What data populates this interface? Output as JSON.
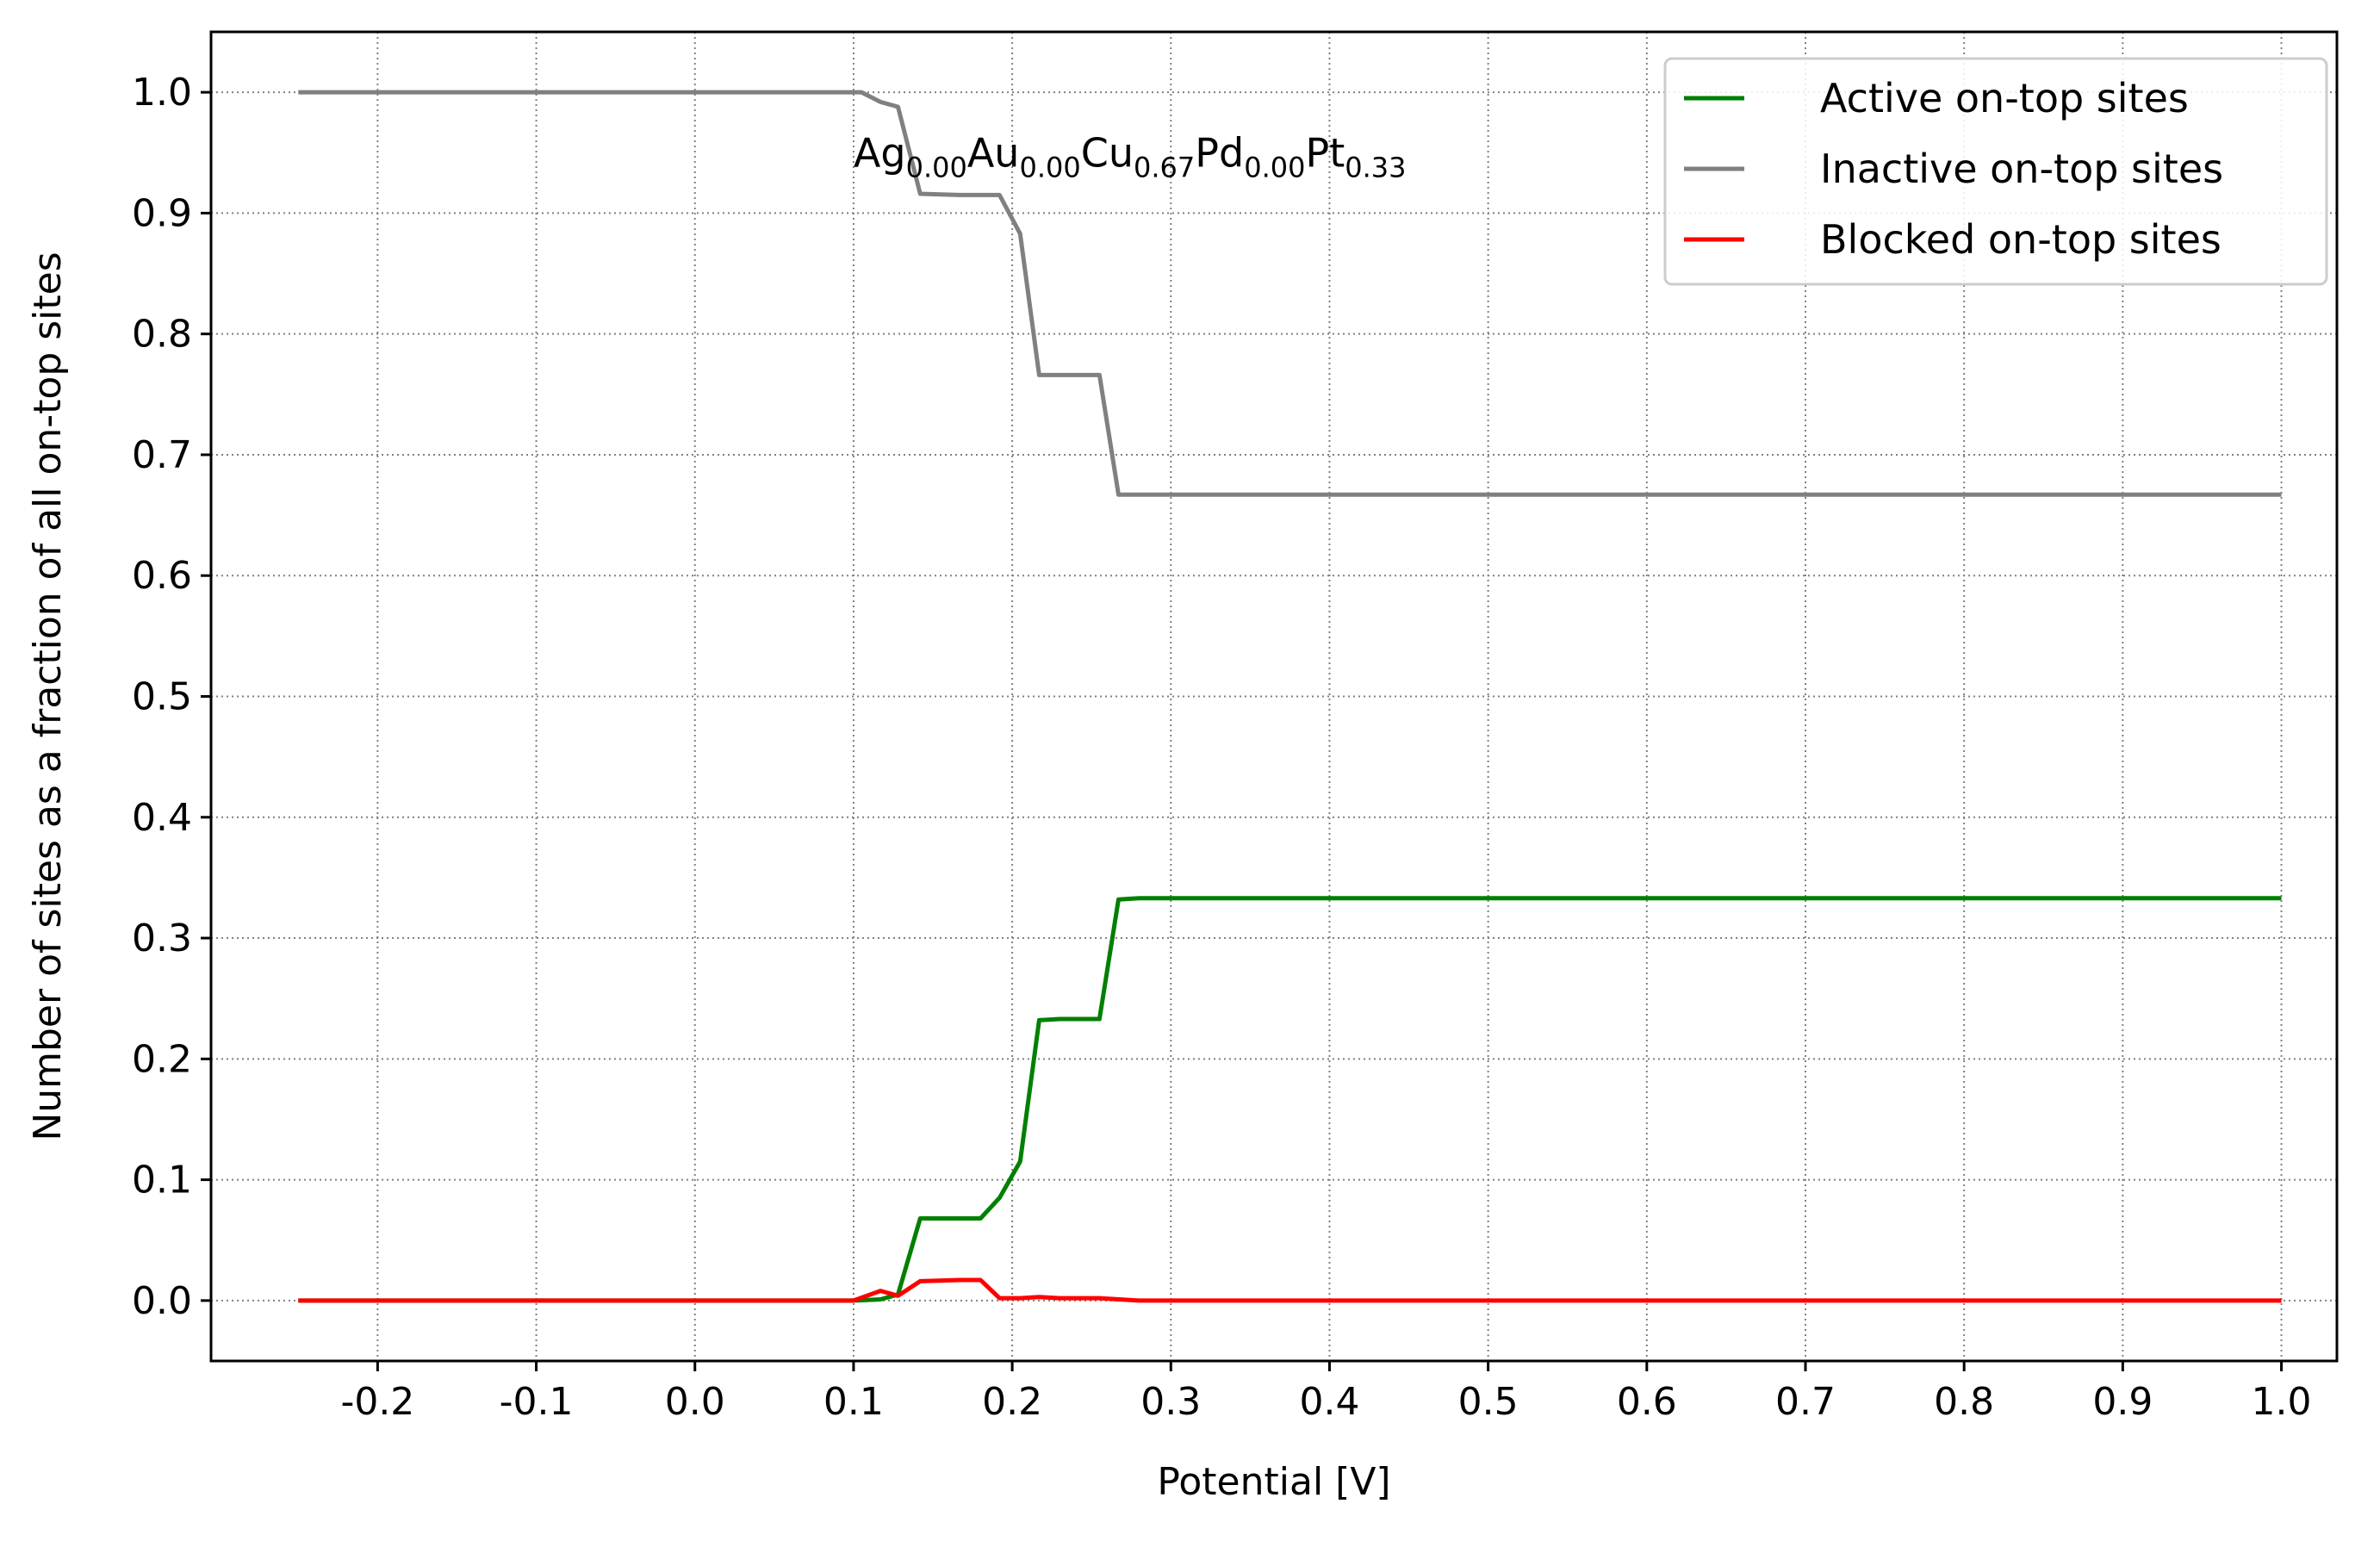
{
  "chart_data": {
    "type": "line",
    "title": "",
    "xlabel": "Potential [V]",
    "ylabel": "Number of sites as a fraction of all on-top sites",
    "xlim": [
      -0.305,
      1.035
    ],
    "ylim": [
      -0.05,
      1.05
    ],
    "xticks": [
      -0.2,
      -0.1,
      0.0,
      0.1,
      0.2,
      0.3,
      0.4,
      0.5,
      0.6,
      0.7,
      0.8,
      0.9,
      1.0
    ],
    "xtick_labels": [
      "-0.2",
      "-0.1",
      "0.0",
      "0.1",
      "0.2",
      "0.3",
      "0.4",
      "0.5",
      "0.6",
      "0.7",
      "0.8",
      "0.9",
      "1.0"
    ],
    "yticks": [
      0.0,
      0.1,
      0.2,
      0.3,
      0.4,
      0.5,
      0.6,
      0.7,
      0.8,
      0.9,
      1.0
    ],
    "ytick_labels": [
      "0.0",
      "0.1",
      "0.2",
      "0.3",
      "0.4",
      "0.5",
      "0.6",
      "0.7",
      "0.8",
      "0.9",
      "1.0"
    ],
    "grid": true,
    "legend_position": "top-right",
    "annotation": {
      "parts": [
        {
          "text": "Ag",
          "sub": "0.00"
        },
        {
          "text": "Au",
          "sub": "0.00"
        },
        {
          "text": "Cu",
          "sub": "0.67"
        },
        {
          "text": "Pd",
          "sub": "0.00"
        },
        {
          "text": "Pt",
          "sub": "0.33"
        }
      ],
      "x": 0.1,
      "y": 0.95
    },
    "series": [
      {
        "name": "Active on-top sites",
        "color": "#008000",
        "x": [
          -0.25,
          0.1,
          0.117,
          0.128,
          0.142,
          0.167,
          0.18,
          0.192,
          0.205,
          0.217,
          0.23,
          0.255,
          0.267,
          0.28,
          1.0
        ],
        "y": [
          0.0,
          0.0,
          0.001,
          0.005,
          0.068,
          0.068,
          0.068,
          0.085,
          0.115,
          0.232,
          0.233,
          0.233,
          0.332,
          0.333,
          0.333
        ]
      },
      {
        "name": "Inactive on-top sites",
        "color": "#808080",
        "x": [
          -0.25,
          0.1,
          0.105,
          0.117,
          0.128,
          0.142,
          0.167,
          0.192,
          0.205,
          0.217,
          0.23,
          0.255,
          0.267,
          0.28,
          1.0
        ],
        "y": [
          1.0,
          1.0,
          1.0,
          0.992,
          0.988,
          0.916,
          0.915,
          0.915,
          0.883,
          0.766,
          0.766,
          0.766,
          0.667,
          0.667,
          0.667
        ]
      },
      {
        "name": "Blocked on-top sites",
        "color": "#ff0000",
        "x": [
          -0.25,
          0.1,
          0.117,
          0.128,
          0.142,
          0.167,
          0.18,
          0.192,
          0.205,
          0.217,
          0.23,
          0.255,
          0.28,
          1.0
        ],
        "y": [
          0.0,
          0.0,
          0.008,
          0.004,
          0.016,
          0.017,
          0.017,
          0.002,
          0.002,
          0.003,
          0.002,
          0.002,
          0.0,
          0.0
        ]
      }
    ]
  }
}
